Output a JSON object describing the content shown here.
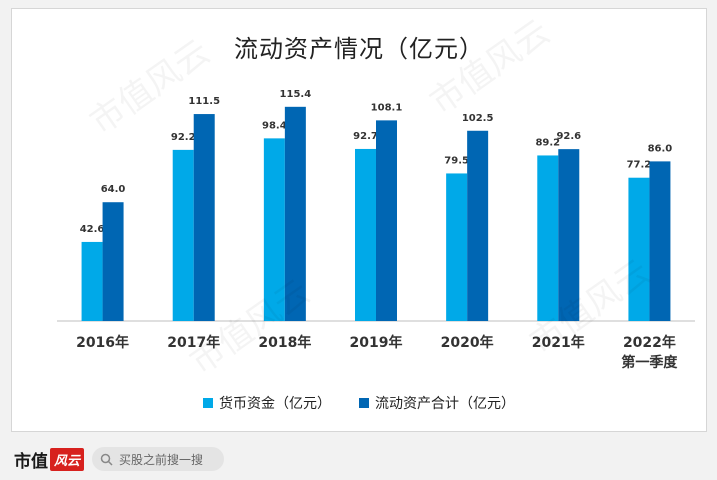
{
  "page": {
    "background": "#f2f2f2"
  },
  "chart_data": {
    "type": "bar",
    "title": "流动资产情况（亿元）",
    "categories": [
      "2016年",
      "2017年",
      "2018年",
      "2019年",
      "2020年",
      "2021年",
      "2022年\n第一季度"
    ],
    "series": [
      {
        "name": "货币资金（亿元）",
        "color": "#00a9e8",
        "values": [
          42.6,
          92.2,
          98.4,
          92.7,
          79.5,
          89.2,
          77.2
        ]
      },
      {
        "name": "流动资产合计（亿元）",
        "color": "#0066b3",
        "values": [
          64.0,
          111.5,
          115.4,
          108.1,
          102.5,
          92.6,
          86.0
        ]
      }
    ],
    "ylim": [
      0,
      125
    ],
    "grid": false,
    "legend_position": "bottom",
    "xlabel": "",
    "ylabel": ""
  },
  "footer": {
    "brand_text": "市值",
    "brand_mark": "风云",
    "search_placeholder": "买股之前搜一搜"
  },
  "watermark_text": "市值风云"
}
